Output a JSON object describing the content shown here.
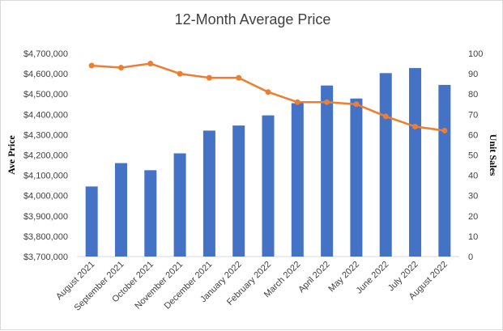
{
  "chart_data": {
    "type": "bar+line",
    "title": "12-Month Average Price",
    "categories": [
      "August 2021",
      "September 2021",
      "October 2021",
      "November 2021",
      "December 2021",
      "January 2022",
      "February 2022",
      "March 2022",
      "April 2022",
      "May 2022",
      "June 2022",
      "July 2022",
      "August 2022"
    ],
    "series": [
      {
        "type": "bar",
        "axis": "left",
        "color": "#4472c4",
        "values": [
          4045000,
          4160000,
          4125000,
          4208000,
          4320000,
          4345000,
          4395000,
          4455000,
          4542000,
          4478000,
          4603000,
          4628000,
          4545000
        ]
      },
      {
        "type": "line",
        "axis": "right",
        "color": "#ed7d31",
        "values": [
          94,
          93,
          95,
          90,
          88,
          88,
          81,
          76,
          76,
          75,
          69,
          64,
          62
        ]
      }
    ],
    "ylabel": "Ave Price",
    "y2label": "Unit Sales",
    "ylim": [
      3700000,
      4700000
    ],
    "y2lim": [
      0,
      100
    ],
    "yticks": [
      "$3,700,000",
      "$3,800,000",
      "$3,900,000",
      "$4,000,000",
      "$4,100,000",
      "$4,200,000",
      "$4,300,000",
      "$4,400,000",
      "$4,500,000",
      "$4,600,000",
      "$4,700,000"
    ],
    "y2ticks": [
      "0",
      "10",
      "20",
      "30",
      "40",
      "50",
      "60",
      "70",
      "80",
      "90",
      "100"
    ],
    "grid": false,
    "legend": "none"
  }
}
